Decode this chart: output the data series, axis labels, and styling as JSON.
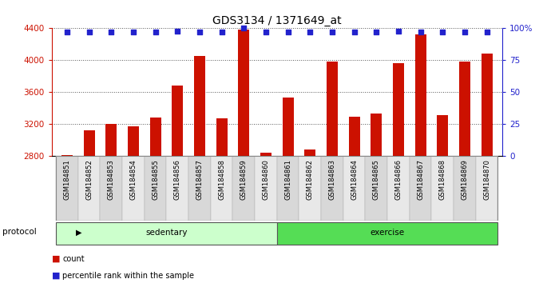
{
  "title": "GDS3134 / 1371649_at",
  "categories": [
    "GSM184851",
    "GSM184852",
    "GSM184853",
    "GSM184854",
    "GSM184855",
    "GSM184856",
    "GSM184857",
    "GSM184858",
    "GSM184859",
    "GSM184860",
    "GSM184861",
    "GSM184862",
    "GSM184863",
    "GSM184864",
    "GSM184865",
    "GSM184866",
    "GSM184867",
    "GSM184868",
    "GSM184869",
    "GSM184870"
  ],
  "bar_values": [
    2810,
    3120,
    3200,
    3170,
    3280,
    3680,
    4050,
    3270,
    4380,
    2840,
    3530,
    2880,
    3980,
    3290,
    3330,
    3960,
    4320,
    3310,
    3980,
    4080
  ],
  "percentile_values": [
    97,
    97,
    97,
    97,
    97,
    98,
    97,
    97,
    100,
    97,
    97,
    97,
    97,
    97,
    97,
    98,
    97,
    97,
    97,
    97
  ],
  "bar_color": "#cc1100",
  "percentile_color": "#2222cc",
  "ylim_left": [
    2800,
    4400
  ],
  "ylim_right": [
    0,
    100
  ],
  "yticks_left": [
    2800,
    3200,
    3600,
    4000,
    4400
  ],
  "yticks_right": [
    0,
    25,
    50,
    75,
    100
  ],
  "ytick_labels_right": [
    "0",
    "25",
    "50",
    "75",
    "100%"
  ],
  "n_sedentary": 10,
  "n_exercise": 10,
  "sedentary_color": "#ccffcc",
  "exercise_color": "#55dd55",
  "protocol_label": "protocol",
  "sedentary_label": "sedentary",
  "exercise_label": "exercise",
  "legend_count_label": "count",
  "legend_percentile_label": "percentile rank within the sample",
  "background_color": "#ffffff",
  "plot_bg_color": "#ffffff",
  "axis_label_color_left": "#cc1100",
  "axis_label_color_right": "#2222cc",
  "title_fontsize": 10,
  "cell_color_odd": "#d8d8d8",
  "cell_color_even": "#e8e8e8"
}
